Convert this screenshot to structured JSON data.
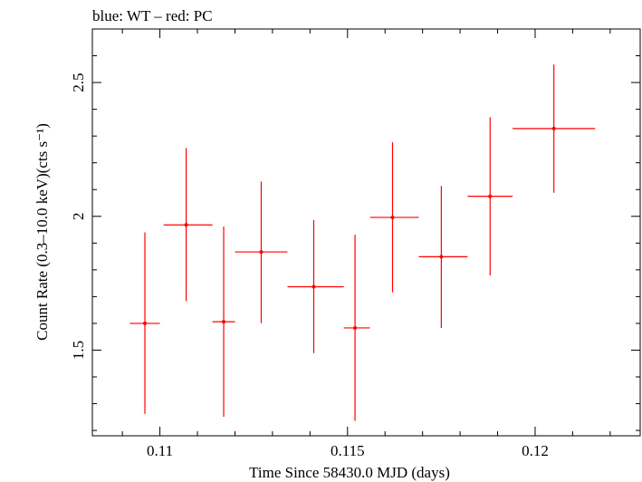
{
  "chart_data": {
    "type": "scatter",
    "title": "blue: WT – red: PC",
    "xlabel": "Time Since 58430.0 MJD (days)",
    "ylabel": "Count Rate (0.3–10.0 keV)(cts s⁻¹)",
    "xlim": [
      0.1082,
      0.1228
    ],
    "ylim": [
      1.18,
      2.7
    ],
    "x_ticks": [
      0.11,
      0.115,
      0.12
    ],
    "x_tick_labels": [
      "0.11",
      "0.115",
      "0.12"
    ],
    "y_ticks": [
      1.5,
      2,
      2.5
    ],
    "y_tick_labels": [
      "1.5",
      "2",
      "2.5"
    ],
    "grid": false,
    "series": [
      {
        "color": "#ff0000",
        "points": [
          {
            "x": 0.1096,
            "xlo": 0.1092,
            "xhi": 0.11,
            "y": 1.6,
            "ylo": 1.262,
            "yhi": 1.94
          },
          {
            "x": 0.1107,
            "xlo": 0.1101,
            "xhi": 0.1114,
            "y": 1.968,
            "ylo": 1.683,
            "yhi": 2.255
          },
          {
            "x": 0.1117,
            "xlo": 0.1114,
            "xhi": 0.112,
            "y": 1.606,
            "ylo": 1.251,
            "yhi": 1.962
          },
          {
            "x": 0.1127,
            "xlo": 0.112,
            "xhi": 0.1134,
            "y": 1.867,
            "ylo": 1.601,
            "yhi": 2.13
          },
          {
            "x": 0.1141,
            "xlo": 0.1134,
            "xhi": 0.1149,
            "y": 1.737,
            "ylo": 1.489,
            "yhi": 1.986
          },
          {
            "x": 0.1152,
            "xlo": 0.1149,
            "xhi": 0.1156,
            "y": 1.583,
            "ylo": 1.236,
            "yhi": 1.931
          },
          {
            "x": 0.1162,
            "xlo": 0.1156,
            "xhi": 0.1169,
            "y": 1.996,
            "ylo": 1.716,
            "yhi": 2.277
          },
          {
            "x": 0.1175,
            "xlo": 0.1169,
            "xhi": 0.1182,
            "y": 1.849,
            "ylo": 1.583,
            "yhi": 2.113
          },
          {
            "x": 0.1188,
            "xlo": 0.1182,
            "xhi": 0.1194,
            "y": 2.075,
            "ylo": 1.779,
            "yhi": 2.37
          },
          {
            "x": 0.1205,
            "xlo": 0.1194,
            "xhi": 0.1216,
            "y": 2.328,
            "ylo": 2.088,
            "yhi": 2.567
          }
        ]
      }
    ]
  }
}
